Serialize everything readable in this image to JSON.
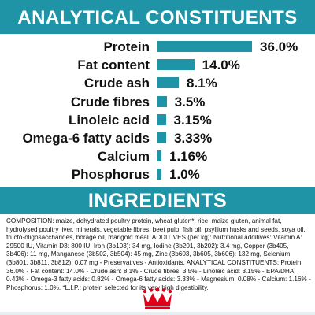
{
  "analytical": {
    "title": "ANALYTICAL CONSTITUENTS",
    "rows": [
      {
        "label": "Protein",
        "value_text": "36.0%",
        "value": 36.0
      },
      {
        "label": "Fat content",
        "value_text": "14.0%",
        "value": 14.0
      },
      {
        "label": "Crude ash",
        "value_text": "8.1%",
        "value": 8.1
      },
      {
        "label": "Crude fibres",
        "value_text": "3.5%",
        "value": 3.5
      },
      {
        "label": "Linoleic acid",
        "value_text": "3.15%",
        "value": 3.15
      },
      {
        "label": "Omega-6 fatty acids",
        "value_text": "3.33%",
        "value": 3.33
      },
      {
        "label": "Calcium",
        "value_text": "1.16%",
        "value": 1.16
      },
      {
        "label": "Phosphorus",
        "value_text": "1.0%",
        "value": 1.0
      }
    ]
  },
  "ingredients": {
    "title": "INGREDIENTS",
    "text": "COMPOSITION: maize, dehydrated poultry protein, wheat gluten*, rice, maize gluten, animal fat, hydrolysed poultry liver, minerals, vegetable fibres, beet pulp, fish oil, psyllium husks and seeds, soya oil, fructo-oligosaccharides, borage oil, marigold meal. ADDITIVES (per kg): Nutritional additives: Vitamin A: 29500 IU, Vitamin D3: 800 IU, Iron (3b103): 34 mg, Iodine (3b201, 3b202): 3.4 mg, Copper (3b405, 3b406): 11 mg, Manganese (3b502, 3b504): 45 mg, Zinc (3b603, 3b605, 3b606): 132 mg, Selenium (3b801, 3b811, 3b812): 0.07 mg - Preservatives - Antioxidants. ANALYTICAL CONSTITUENTS: Protein: 36.0% - Fat content: 14.0% - Crude ash: 8.1% - Crude fibres: 3.5% - Linoleic acid: 3.15% - EPA/DHA: 0.43% - Omega-3 fatty acids: 0.82% - Omega-6 fatty acids: 3.33% - Magnesium: 0.08% - Calcium: 1.16% - Phosphorus: 1.0%. *L.I.P.: protein selected for its very high digestibility."
  },
  "colors": {
    "accent": "#1f94a6",
    "brand_red": "#e1001a"
  },
  "logo": {
    "icon": "royal-canin-crown-logo"
  }
}
